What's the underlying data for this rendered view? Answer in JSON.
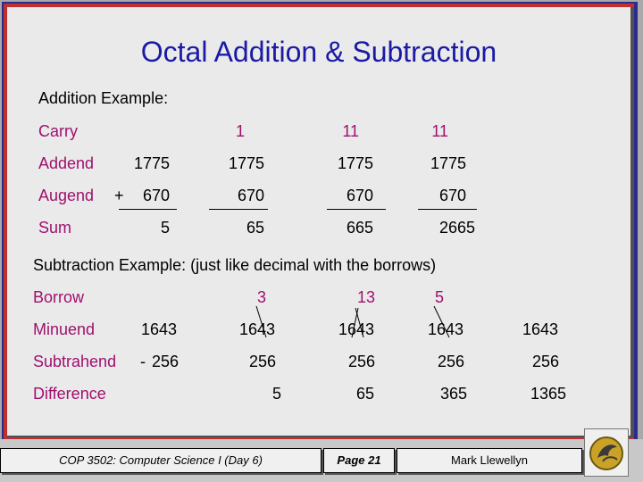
{
  "title": "Octal Addition & Subtraction",
  "addition": {
    "heading": "Addition Example:",
    "labels": {
      "carry": "Carry",
      "addend": "Addend",
      "augend": "Augend",
      "sum": "Sum"
    },
    "plus": "+",
    "carry": [
      "",
      "1",
      "11",
      "11"
    ],
    "addend": [
      "1775",
      "1775",
      "1775",
      "1775"
    ],
    "augend": [
      "670",
      "670",
      "670",
      "670"
    ],
    "sum": [
      "5",
      "65",
      "665",
      "2665"
    ]
  },
  "subtraction": {
    "heading": "Subtraction Example: (just like decimal with the borrows)",
    "labels": {
      "borrow": "Borrow",
      "minuend": "Minuend",
      "subtrahend": "Subtrahend",
      "difference": "Difference"
    },
    "minus": "-",
    "borrow": [
      "",
      "3",
      "13",
      "5",
      ""
    ],
    "minuend": [
      "1643",
      "1643",
      "1643",
      "1643",
      "1643"
    ],
    "subtrahend": [
      "256",
      "256",
      "256",
      "256",
      "256"
    ],
    "difference": [
      "",
      "5",
      "65",
      "365",
      "1365"
    ]
  },
  "footer": {
    "course": "COP 3502: Computer Science I  (Day 6)",
    "page": "Page 21",
    "author": "Mark Llewellyn"
  },
  "colors": {
    "title": "#1a1aa6",
    "label": "#a0106e",
    "border_blue": "#2b2b8f",
    "border_red": "#c03030"
  },
  "icons": {
    "logo": "ucf-pegasus-logo"
  }
}
